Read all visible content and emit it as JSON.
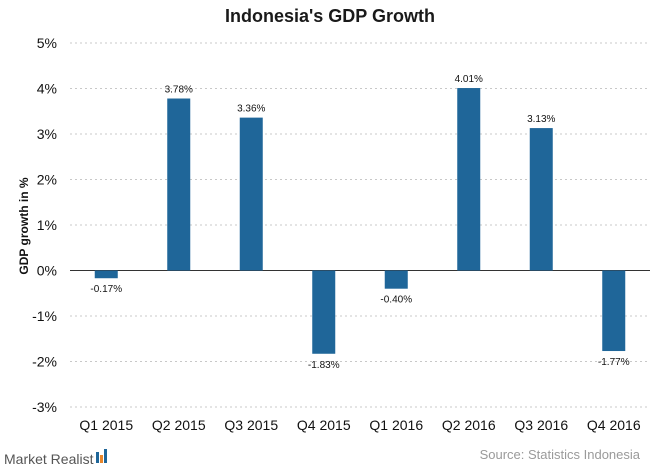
{
  "chart_data": {
    "type": "bar",
    "title": "Indonesia's GDP Growth",
    "xlabel": "",
    "ylabel": "GDP growth in %",
    "categories": [
      "Q1 2015",
      "Q2 2015",
      "Q3 2015",
      "Q4 2015",
      "Q1 2016",
      "Q2 2016",
      "Q3 2016",
      "Q4 2016"
    ],
    "values": [
      -0.17,
      3.78,
      3.36,
      -1.83,
      -0.4,
      4.01,
      3.13,
      -1.77
    ],
    "data_labels": [
      "-0.17%",
      "3.78%",
      "3.36%",
      "-1.83%",
      "-0.40%",
      "4.01%",
      "3.13%",
      "-1.77%"
    ],
    "ylim": [
      -3,
      5
    ],
    "yticks": [
      5,
      4,
      3,
      2,
      1,
      0,
      -1,
      -2,
      -3
    ],
    "ytick_labels": [
      "5%",
      "4%",
      "3%",
      "2%",
      "1%",
      "0%",
      "-1%",
      "-2%",
      "-3%"
    ],
    "grid": true,
    "bar_color": "#1f6699"
  },
  "footer": {
    "brand": "Market Realist",
    "source": "Source: Statistics Indonesia"
  },
  "colors": {
    "brand_icon_blue": "#1f6699",
    "brand_icon_orange": "#e8862a"
  }
}
